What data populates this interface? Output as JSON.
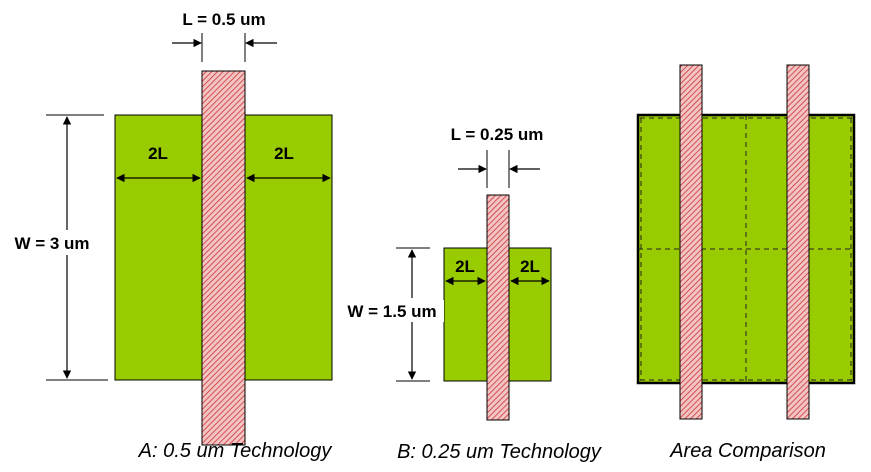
{
  "colors": {
    "active": "#99cc00",
    "gate_fill": "#e8a0a0",
    "gate_hatch": "#c83232",
    "outline": "#000000"
  },
  "panel_a": {
    "l_label": "L = 0.5 um",
    "w_label": "W = 3 um",
    "left_2l": "2L",
    "right_2l": "2L",
    "caption": "A: 0.5 um Technology"
  },
  "panel_b": {
    "l_label": "L = 0.25 um",
    "w_label": "W = 1.5 um",
    "left_2l": "2L",
    "right_2l": "2L",
    "caption": "B: 0.25 um Technology"
  },
  "panel_c": {
    "caption": "Area Comparison"
  }
}
